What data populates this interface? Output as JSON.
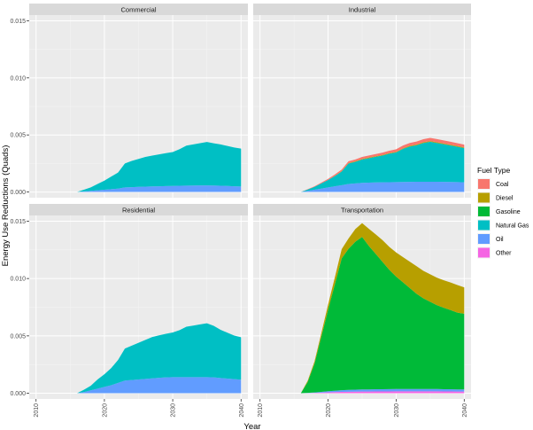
{
  "chart_data": {
    "type": "area",
    "stacked": true,
    "facets": [
      "Commercial",
      "Industrial",
      "Residential",
      "Transportation"
    ],
    "xlabel": "Year",
    "ylabel": "Energy Use Reductions (Quads)",
    "xlim": [
      2009,
      2041
    ],
    "ylim": [
      -0.0005,
      0.0155
    ],
    "x_ticks": [
      2010,
      2020,
      2030,
      2040
    ],
    "y_ticks": [
      0.0,
      0.005,
      0.01,
      0.015
    ],
    "y_tick_labels": [
      "0.000",
      "0.005",
      "0.010",
      "0.015"
    ],
    "grid": true,
    "legend_position": "right",
    "legend_title": "Fuel Type",
    "x": [
      2016,
      2017,
      2018,
      2019,
      2020,
      2021,
      2022,
      2023,
      2024,
      2025,
      2026,
      2027,
      2028,
      2029,
      2030,
      2031,
      2032,
      2033,
      2034,
      2035,
      2036,
      2037,
      2038,
      2039,
      2040
    ],
    "series_order": [
      "Coal",
      "Diesel",
      "Gasoline",
      "Natural Gas",
      "Oil",
      "Other"
    ],
    "series_colors": {
      "Coal": "#F8766D",
      "Diesel": "#B79F00",
      "Gasoline": "#00BA38",
      "Natural Gas": "#00BFC4",
      "Oil": "#619CFF",
      "Other": "#F564E3"
    },
    "panels": [
      {
        "facet": "Commercial",
        "series": [
          {
            "name": "Oil",
            "values": [
              0,
              5e-05,
              0.0001,
              0.00015,
              0.0002,
              0.00025,
              0.0003,
              0.0004,
              0.00042,
              0.00045,
              0.00047,
              0.00049,
              0.0005,
              0.00052,
              0.00053,
              0.00055,
              0.00056,
              0.00057,
              0.00058,
              0.00058,
              0.00057,
              0.00055,
              0.00053,
              0.0005,
              0.00048
            ]
          },
          {
            "name": "Natural Gas",
            "values": [
              0,
              0.00015,
              0.0003,
              0.00055,
              0.0008,
              0.0011,
              0.0014,
              0.0021,
              0.0023,
              0.00245,
              0.0026,
              0.0027,
              0.0028,
              0.00288,
              0.00297,
              0.0032,
              0.0035,
              0.0036,
              0.0037,
              0.0038,
              0.0037,
              0.00362,
              0.0035,
              0.0034,
              0.00332
            ]
          }
        ]
      },
      {
        "facet": "Industrial",
        "series": [
          {
            "name": "Oil",
            "values": [
              0,
              0.0001,
              0.0002,
              0.0003,
              0.0004,
              0.0005,
              0.0006,
              0.0007,
              0.00075,
              0.0008,
              0.00082,
              0.00084,
              0.00085,
              0.00086,
              0.00087,
              0.00088,
              0.00089,
              0.0009,
              0.0009,
              0.0009,
              0.0009,
              0.00089,
              0.00088,
              0.00087,
              0.00085
            ]
          },
          {
            "name": "Natural Gas",
            "values": [
              0,
              0.00012,
              0.00025,
              0.00045,
              0.00065,
              0.0009,
              0.0012,
              0.0018,
              0.0019,
              0.00205,
              0.00215,
              0.00225,
              0.00235,
              0.0025,
              0.0026,
              0.0029,
              0.0031,
              0.0032,
              0.0034,
              0.0035,
              0.0034,
              0.0033,
              0.0032,
              0.0031,
              0.003
            ]
          },
          {
            "name": "Diesel",
            "values": [
              0,
              0,
              0,
              0,
              0,
              2e-05,
              3e-05,
              4e-05,
              4e-05,
              5e-05,
              5e-05,
              5e-05,
              5e-05,
              5e-05,
              5e-05,
              5e-05,
              6e-05,
              6e-05,
              6e-05,
              6e-05,
              6e-05,
              6e-05,
              6e-05,
              6e-05,
              6e-05
            ]
          },
          {
            "name": "Coal",
            "values": [
              0,
              3e-05,
              5e-05,
              7e-05,
              0.0001,
              0.00012,
              0.00014,
              0.00015,
              0.00016,
              0.00017,
              0.00018,
              0.00019,
              0.0002,
              0.00021,
              0.00022,
              0.00024,
              0.00025,
              0.00026,
              0.00027,
              0.00028,
              0.00028,
              0.00027,
              0.00026,
              0.00025,
              0.00024
            ]
          }
        ]
      },
      {
        "facet": "Residential",
        "series": [
          {
            "name": "Oil",
            "values": [
              0,
              0.0001,
              0.00025,
              0.0004,
              0.00055,
              0.0007,
              0.0009,
              0.0011,
              0.00115,
              0.0012,
              0.00125,
              0.0013,
              0.00135,
              0.00138,
              0.0014,
              0.0014,
              0.0014,
              0.0014,
              0.0014,
              0.0014,
              0.00138,
              0.00133,
              0.00128,
              0.00123,
              0.00118
            ]
          },
          {
            "name": "Natural Gas",
            "values": [
              0,
              0.0002,
              0.0004,
              0.0008,
              0.0011,
              0.0015,
              0.002,
              0.0028,
              0.003,
              0.0032,
              0.0034,
              0.0036,
              0.0037,
              0.0038,
              0.0039,
              0.0041,
              0.0044,
              0.0045,
              0.0046,
              0.0047,
              0.0045,
              0.0042,
              0.004,
              0.0038,
              0.0037
            ]
          }
        ]
      },
      {
        "facet": "Transportation",
        "series": [
          {
            "name": "Other",
            "values": [
              0,
              1e-05,
              3e-05,
              5e-05,
              8e-05,
              0.0001,
              0.00012,
              0.00013,
              0.00014,
              0.00015,
              0.00015,
              0.00016,
              0.00016,
              0.00016,
              0.00017,
              0.00017,
              0.00017,
              0.00017,
              0.00017,
              0.00017,
              0.00017,
              0.00016,
              0.00016,
              0.00015,
              0.00015
            ]
          },
          {
            "name": "Oil",
            "values": [
              0,
              2e-05,
              4e-05,
              7e-05,
              0.0001,
              0.00012,
              0.00014,
              0.00016,
              0.00017,
              0.00018,
              0.00018,
              0.00019,
              0.00019,
              0.0002,
              0.0002,
              0.0002,
              0.0002,
              0.0002,
              0.0002,
              0.0002,
              0.0002,
              0.00019,
              0.00019,
              0.00018,
              0.00018
            ]
          },
          {
            "name": "Gasoline",
            "values": [
              0,
              0.00095,
              0.0025,
              0.0048,
              0.0071,
              0.0093,
              0.0115,
              0.0123,
              0.0129,
              0.0133,
              0.0125,
              0.0118,
              0.0111,
              0.0104,
              0.0098,
              0.0093,
              0.0088,
              0.0083,
              0.0079,
              0.0076,
              0.0073,
              0.0071,
              0.0069,
              0.0067,
              0.0066
            ]
          },
          {
            "name": "Diesel",
            "values": [
              0,
              0.0001,
              0.0002,
              0.0003,
              0.00045,
              0.0006,
              0.0008,
              0.0009,
              0.0011,
              0.0012,
              0.0015,
              0.0017,
              0.0019,
              0.002,
              0.0021,
              0.0022,
              0.0023,
              0.0024,
              0.0024,
              0.0024,
              0.0024,
              0.0024,
              0.0024,
              0.0024,
              0.0023
            ]
          }
        ]
      }
    ]
  }
}
